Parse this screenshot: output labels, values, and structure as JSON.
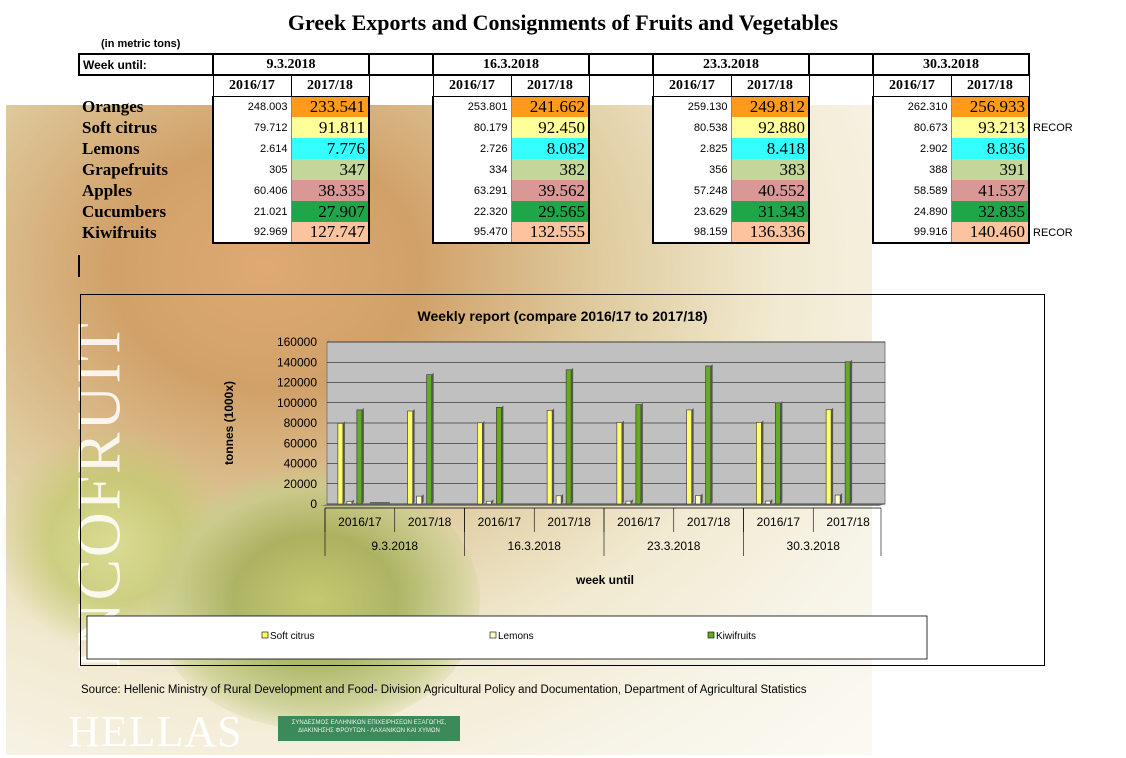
{
  "title": "Greek Exports and Consignments of Fruits and Vegetables",
  "units_note": "(in metric tons)",
  "table": {
    "week_label": "Week until:",
    "weeks": [
      "9.3.2018",
      "16.3.2018",
      "23.3.2018",
      "30.3.2018"
    ],
    "seasons": [
      "2016/17",
      "2017/18"
    ],
    "rows": [
      {
        "name": "Oranges",
        "color": "#ff9a1a",
        "vals": [
          [
            "248.003",
            "233.541"
          ],
          [
            "253.801",
            "241.662"
          ],
          [
            "259.130",
            "249.812"
          ],
          [
            "262.310",
            "256.933"
          ]
        ],
        "note": ""
      },
      {
        "name": "Soft citrus",
        "color": "#ffff99",
        "vals": [
          [
            "79.712",
            "91.811"
          ],
          [
            "80.179",
            "92.450"
          ],
          [
            "80.538",
            "92.880"
          ],
          [
            "80.673",
            "93.213"
          ]
        ],
        "note": "RECOR"
      },
      {
        "name": "Lemons",
        "color": "#33ffff",
        "vals": [
          [
            "2.614",
            "7.776"
          ],
          [
            "2.726",
            "8.082"
          ],
          [
            "2.825",
            "8.418"
          ],
          [
            "2.902",
            "8.836"
          ]
        ],
        "note": ""
      },
      {
        "name": "Grapefruits",
        "color": "#c4d79b",
        "vals": [
          [
            "305",
            "347"
          ],
          [
            "334",
            "382"
          ],
          [
            "356",
            "383"
          ],
          [
            "388",
            "391"
          ]
        ],
        "note": ""
      },
      {
        "name": "Apples",
        "color": "#d99795",
        "vals": [
          [
            "60.406",
            "38.335"
          ],
          [
            "63.291",
            "39.562"
          ],
          [
            "57.248",
            "40.552"
          ],
          [
            "58.589",
            "41.537"
          ]
        ],
        "note": ""
      },
      {
        "name": "Cucumbers",
        "color": "#1fa64a",
        "vals": [
          [
            "21.021",
            "27.907"
          ],
          [
            "22.320",
            "29.565"
          ],
          [
            "23.629",
            "31.343"
          ],
          [
            "24.890",
            "32.835"
          ]
        ],
        "note": ""
      },
      {
        "name": "Kiwifruits",
        "color": "#fcc49e",
        "vals": [
          [
            "92.969",
            "127.747"
          ],
          [
            "95.470",
            "132.555"
          ],
          [
            "98.159",
            "136.336"
          ],
          [
            "99.916",
            "140.460"
          ]
        ],
        "note": "RECOR"
      }
    ]
  },
  "chart_data": {
    "type": "bar",
    "title": "Weekly report (compare 2016/17 to 2017/18)",
    "xlabel": "week until",
    "ylabel": "tonnes (1000x)",
    "ylim": [
      0,
      160000
    ],
    "yticks": [
      "0",
      "20000",
      "40000",
      "60000",
      "80000",
      "100000",
      "120000",
      "140000",
      "160000"
    ],
    "categories": [
      "2016/17",
      "2017/18",
      "2016/17",
      "2017/18",
      "2016/17",
      "2017/18",
      "2016/17",
      "2017/18"
    ],
    "groups": [
      "9.3.2018",
      "16.3.2018",
      "23.3.2018",
      "30.3.2018"
    ],
    "series": [
      {
        "name": "Soft citrus",
        "color": "#ffff66",
        "values": [
          79712,
          91811,
          80179,
          92450,
          80538,
          92880,
          80673,
          93213
        ]
      },
      {
        "name": "Lemons",
        "color": "#ffffcc",
        "values": [
          2614,
          7776,
          2726,
          8082,
          2825,
          8418,
          2902,
          8836
        ]
      },
      {
        "name": "Kiwifruits",
        "color": "#66aa22",
        "values": [
          92969,
          127747,
          95470,
          132555,
          98159,
          136336,
          99916,
          140460
        ]
      }
    ],
    "legend_position": "bottom"
  },
  "source": "Source: Hellenic Ministry of Rural Development and Food- Division Agricultural Policy and Documentation, Department of Agricultural Statistics",
  "logo_text": "ΣΥΝΔΕΣΜΟΣ ΕΛΛΗΝΙΚΩΝ ΕΠΙΧΕΙΡΗΣΕΩΝ ΕΞΑΓΩΓΗΣ, ΔΙΑΚΙΝΗΣΗΣ ΦΡΟΥΤΩΝ - ΛΑΧΑΝΙΚΩΝ ΚΑΙ ΧΥΜΩΝ",
  "watermark_vertical": "INCOFRUIT",
  "watermark_horizontal": "HELLAS"
}
